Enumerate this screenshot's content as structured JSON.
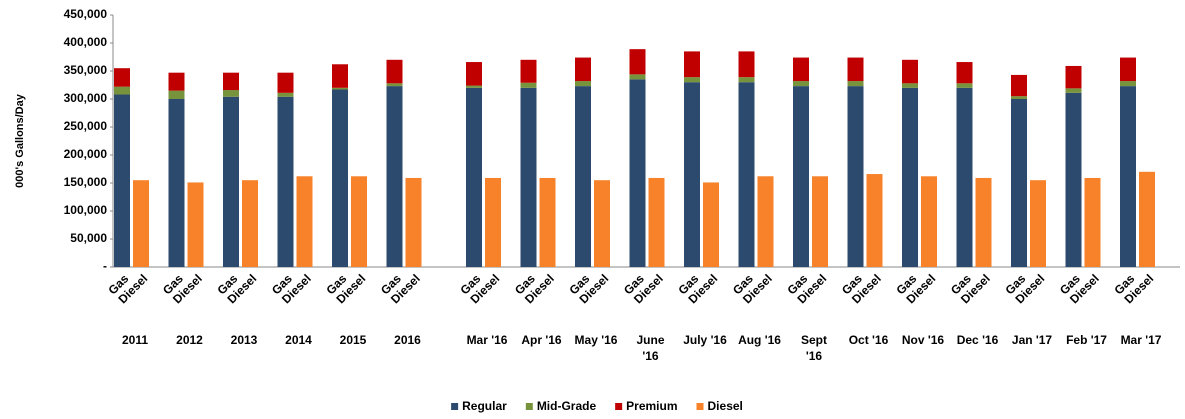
{
  "chart_data": {
    "type": "stacked_grouped_bar",
    "y_label": "000's Gallons/Day",
    "stack_labels": [
      "Gas",
      "Diesel"
    ],
    "categories": [
      "2011",
      "2012",
      "2013",
      "2014",
      "2015",
      "2016",
      "Mar '16",
      "Apr '16",
      "May '16",
      "June '16",
      "July '16",
      "Aug '16",
      "Sept '16",
      "Oct '16",
      "Nov '16",
      "Dec '16",
      "Jan '17",
      "Feb '17",
      "Mar '17"
    ],
    "series": [
      {
        "name": "Regular",
        "color": "#2c4a6e",
        "stack": 0,
        "values": [
          308000,
          300000,
          304000,
          304000,
          317000,
          323000,
          320000,
          320000,
          323000,
          335000,
          330000,
          330000,
          323000,
          323000,
          320000,
          320000,
          300000,
          311000,
          323000
        ]
      },
      {
        "name": "Mid-Grade",
        "color": "#77933c",
        "stack": 0,
        "values": [
          14000,
          15000,
          12000,
          7000,
          3000,
          5000,
          4000,
          9000,
          9000,
          9000,
          9000,
          9000,
          9000,
          9000,
          8000,
          8000,
          5000,
          8000,
          9000
        ]
      },
      {
        "name": "Premium",
        "color": "#c00000",
        "stack": 0,
        "values": [
          33000,
          32000,
          31000,
          36000,
          42000,
          42000,
          42000,
          41000,
          42000,
          45000,
          46000,
          46000,
          42000,
          42000,
          42000,
          38000,
          38000,
          40000,
          42000
        ]
      },
      {
        "name": "Diesel",
        "color": "#f7822a",
        "stack": 1,
        "values": [
          155000,
          151000,
          155000,
          162000,
          162000,
          159000,
          159000,
          159000,
          155000,
          159000,
          151000,
          162000,
          162000,
          166000,
          162000,
          159000,
          155000,
          159000,
          170000
        ]
      }
    ],
    "ylim": [
      0,
      450000
    ],
    "yticks": [
      {
        "value": 0,
        "label": "-"
      },
      {
        "value": 50000,
        "label": "50,000"
      },
      {
        "value": 100000,
        "label": "100,000"
      },
      {
        "value": 150000,
        "label": "150,000"
      },
      {
        "value": 200000,
        "label": "200,000"
      },
      {
        "value": 250000,
        "label": "250,000"
      },
      {
        "value": 300000,
        "label": "300,000"
      },
      {
        "value": 350000,
        "label": "350,000"
      },
      {
        "value": 400000,
        "label": "400,000"
      },
      {
        "value": 450000,
        "label": "450,000"
      }
    ],
    "grid": false,
    "legend": "bottom"
  }
}
